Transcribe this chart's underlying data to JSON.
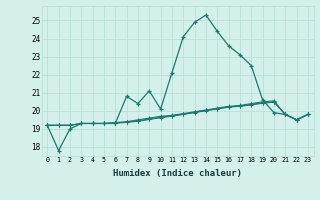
{
  "xlabel": "Humidex (Indice chaleur)",
  "x": [
    0,
    1,
    2,
    3,
    4,
    5,
    6,
    7,
    8,
    9,
    10,
    11,
    12,
    13,
    14,
    15,
    16,
    17,
    18,
    19,
    20,
    21,
    22,
    23
  ],
  "line1": [
    19.2,
    17.8,
    19.0,
    19.3,
    19.3,
    19.3,
    19.3,
    20.8,
    20.4,
    21.1,
    20.1,
    22.1,
    24.1,
    24.9,
    25.3,
    24.4,
    23.6,
    23.1,
    22.5,
    20.6,
    19.9,
    19.8,
    19.5,
    19.8
  ],
  "line2": [
    19.2,
    19.2,
    19.2,
    19.3,
    19.3,
    19.3,
    19.35,
    19.4,
    19.5,
    19.6,
    19.7,
    19.75,
    19.85,
    19.95,
    20.05,
    20.15,
    20.25,
    20.3,
    20.4,
    20.5,
    20.55,
    19.8,
    19.5,
    19.8
  ],
  "line3": [
    19.2,
    19.2,
    19.2,
    19.3,
    19.3,
    19.3,
    19.33,
    19.38,
    19.45,
    19.55,
    19.65,
    19.72,
    19.82,
    19.92,
    20.02,
    20.12,
    20.22,
    20.27,
    20.35,
    20.45,
    20.5,
    19.8,
    19.5,
    19.8
  ],
  "line4": [
    19.2,
    19.2,
    19.2,
    19.3,
    19.3,
    19.3,
    19.31,
    19.36,
    19.42,
    19.52,
    19.62,
    19.7,
    19.8,
    19.9,
    20.0,
    20.1,
    20.2,
    20.25,
    20.32,
    20.42,
    20.48,
    19.8,
    19.5,
    19.8
  ],
  "line_color": "#1a7a6e",
  "bg_color": "#d4f0eb",
  "grid_color": "#b8ddd8",
  "ylim": [
    17.5,
    25.8
  ],
  "yticks": [
    18,
    19,
    20,
    21,
    22,
    23,
    24,
    25
  ],
  "xticks": [
    0,
    1,
    2,
    3,
    4,
    5,
    6,
    7,
    8,
    9,
    10,
    11,
    12,
    13,
    14,
    15,
    16,
    17,
    18,
    19,
    20,
    21,
    22,
    23
  ]
}
